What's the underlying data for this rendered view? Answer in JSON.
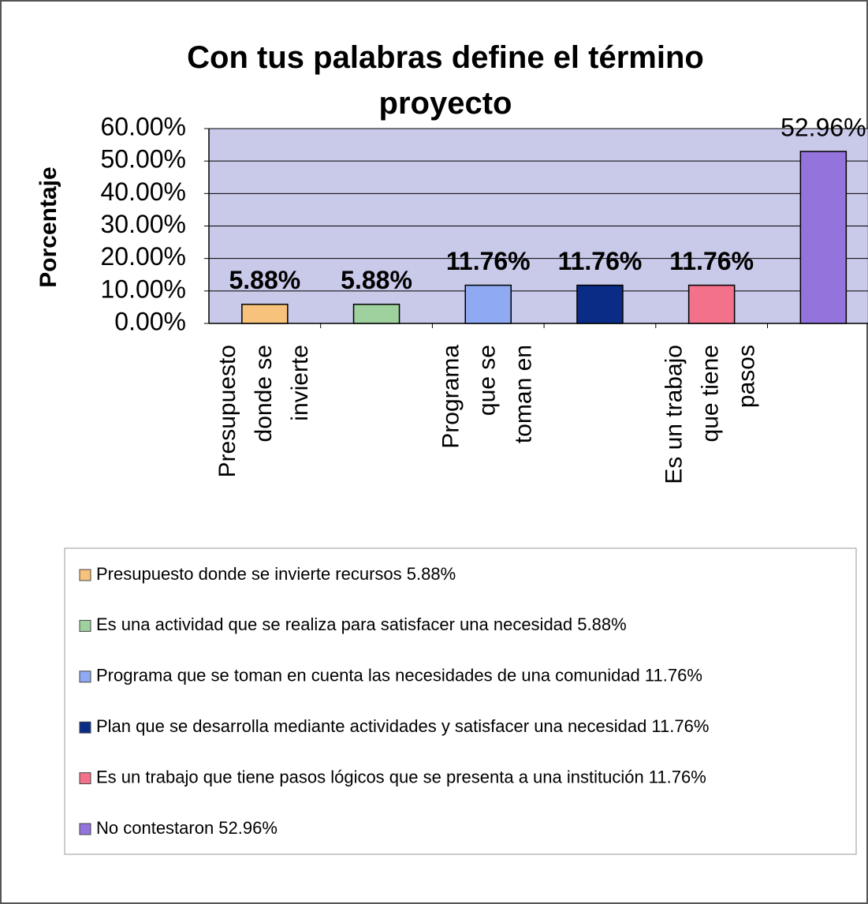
{
  "chart_data": {
    "type": "bar",
    "title": "Con tus palabras define el término\nproyecto",
    "y_label": "Porcentaje",
    "categories": [
      "Presupuesto\ndonde se\ninvierte",
      null,
      "Programa\nque se\ntoman en",
      null,
      "Es un trabajo\nque tiene\npasos",
      null
    ],
    "values": [
      5.88,
      5.88,
      11.76,
      11.76,
      11.76,
      52.96
    ],
    "value_labels": [
      "5.88%",
      "5.88%",
      "11.76%",
      "11.76%",
      "11.76%",
      "52.96%"
    ],
    "colors": [
      "#f6c27c",
      "#9fd19f",
      "#8fa9f2",
      "#0a2c86",
      "#f3718a",
      "#9474dc"
    ],
    "ylim": [
      0,
      60
    ],
    "yticks": [
      {
        "value": 0,
        "label": "0.00%"
      },
      {
        "value": 10,
        "label": "10.00%"
      },
      {
        "value": 20,
        "label": "20.00%"
      },
      {
        "value": 30,
        "label": "30.00%"
      },
      {
        "value": 40,
        "label": "40.00%"
      },
      {
        "value": 50,
        "label": "50.00%"
      },
      {
        "value": 60,
        "label": "60.00%"
      }
    ],
    "grid": true,
    "legend": [
      "Presupuesto donde se invierte recursos 5.88%",
      "Es una actividad que se realiza para satisfacer una necesidad  5.88%",
      "Programa que se toman en cuenta las necesidades de una comunidad  11.76%",
      "Plan que se desarrolla mediante actividades y satisfacer una necesidad  11.76%",
      "Es un trabajo que tiene pasos lógicos que se presenta a una institución  11.76%",
      "No contestaron  52.96%"
    ]
  }
}
